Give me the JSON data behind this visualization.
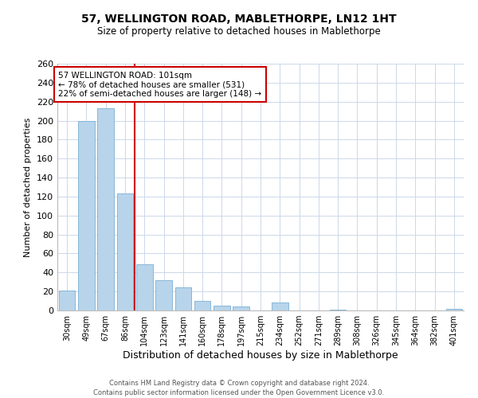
{
  "title": "57, WELLINGTON ROAD, MABLETHORPE, LN12 1HT",
  "subtitle": "Size of property relative to detached houses in Mablethorpe",
  "xlabel": "Distribution of detached houses by size in Mablethorpe",
  "ylabel": "Number of detached properties",
  "bar_labels": [
    "30sqm",
    "49sqm",
    "67sqm",
    "86sqm",
    "104sqm",
    "123sqm",
    "141sqm",
    "160sqm",
    "178sqm",
    "197sqm",
    "215sqm",
    "234sqm",
    "252sqm",
    "271sqm",
    "289sqm",
    "308sqm",
    "326sqm",
    "345sqm",
    "364sqm",
    "382sqm",
    "401sqm"
  ],
  "bar_values": [
    21,
    200,
    213,
    123,
    49,
    32,
    24,
    10,
    5,
    4,
    0,
    8,
    0,
    0,
    1,
    0,
    0,
    0,
    0,
    0,
    2
  ],
  "bar_color": "#b8d4ea",
  "bar_edge_color": "#7aafd4",
  "ref_line_x": 3.5,
  "ref_line_label": "57 WELLINGTON ROAD: 101sqm",
  "annotation_line1": "← 78% of detached houses are smaller (531)",
  "annotation_line2": "22% of semi-detached houses are larger (148) →",
  "annotation_box_color": "#ffffff",
  "annotation_box_edge": "#cc0000",
  "ref_line_color": "#cc0000",
  "ylim": [
    0,
    260
  ],
  "yticks": [
    0,
    20,
    40,
    60,
    80,
    100,
    120,
    140,
    160,
    180,
    200,
    220,
    240,
    260
  ],
  "footer1": "Contains HM Land Registry data © Crown copyright and database right 2024.",
  "footer2": "Contains public sector information licensed under the Open Government Licence v3.0.",
  "background_color": "#ffffff",
  "grid_color": "#ccd8e8"
}
